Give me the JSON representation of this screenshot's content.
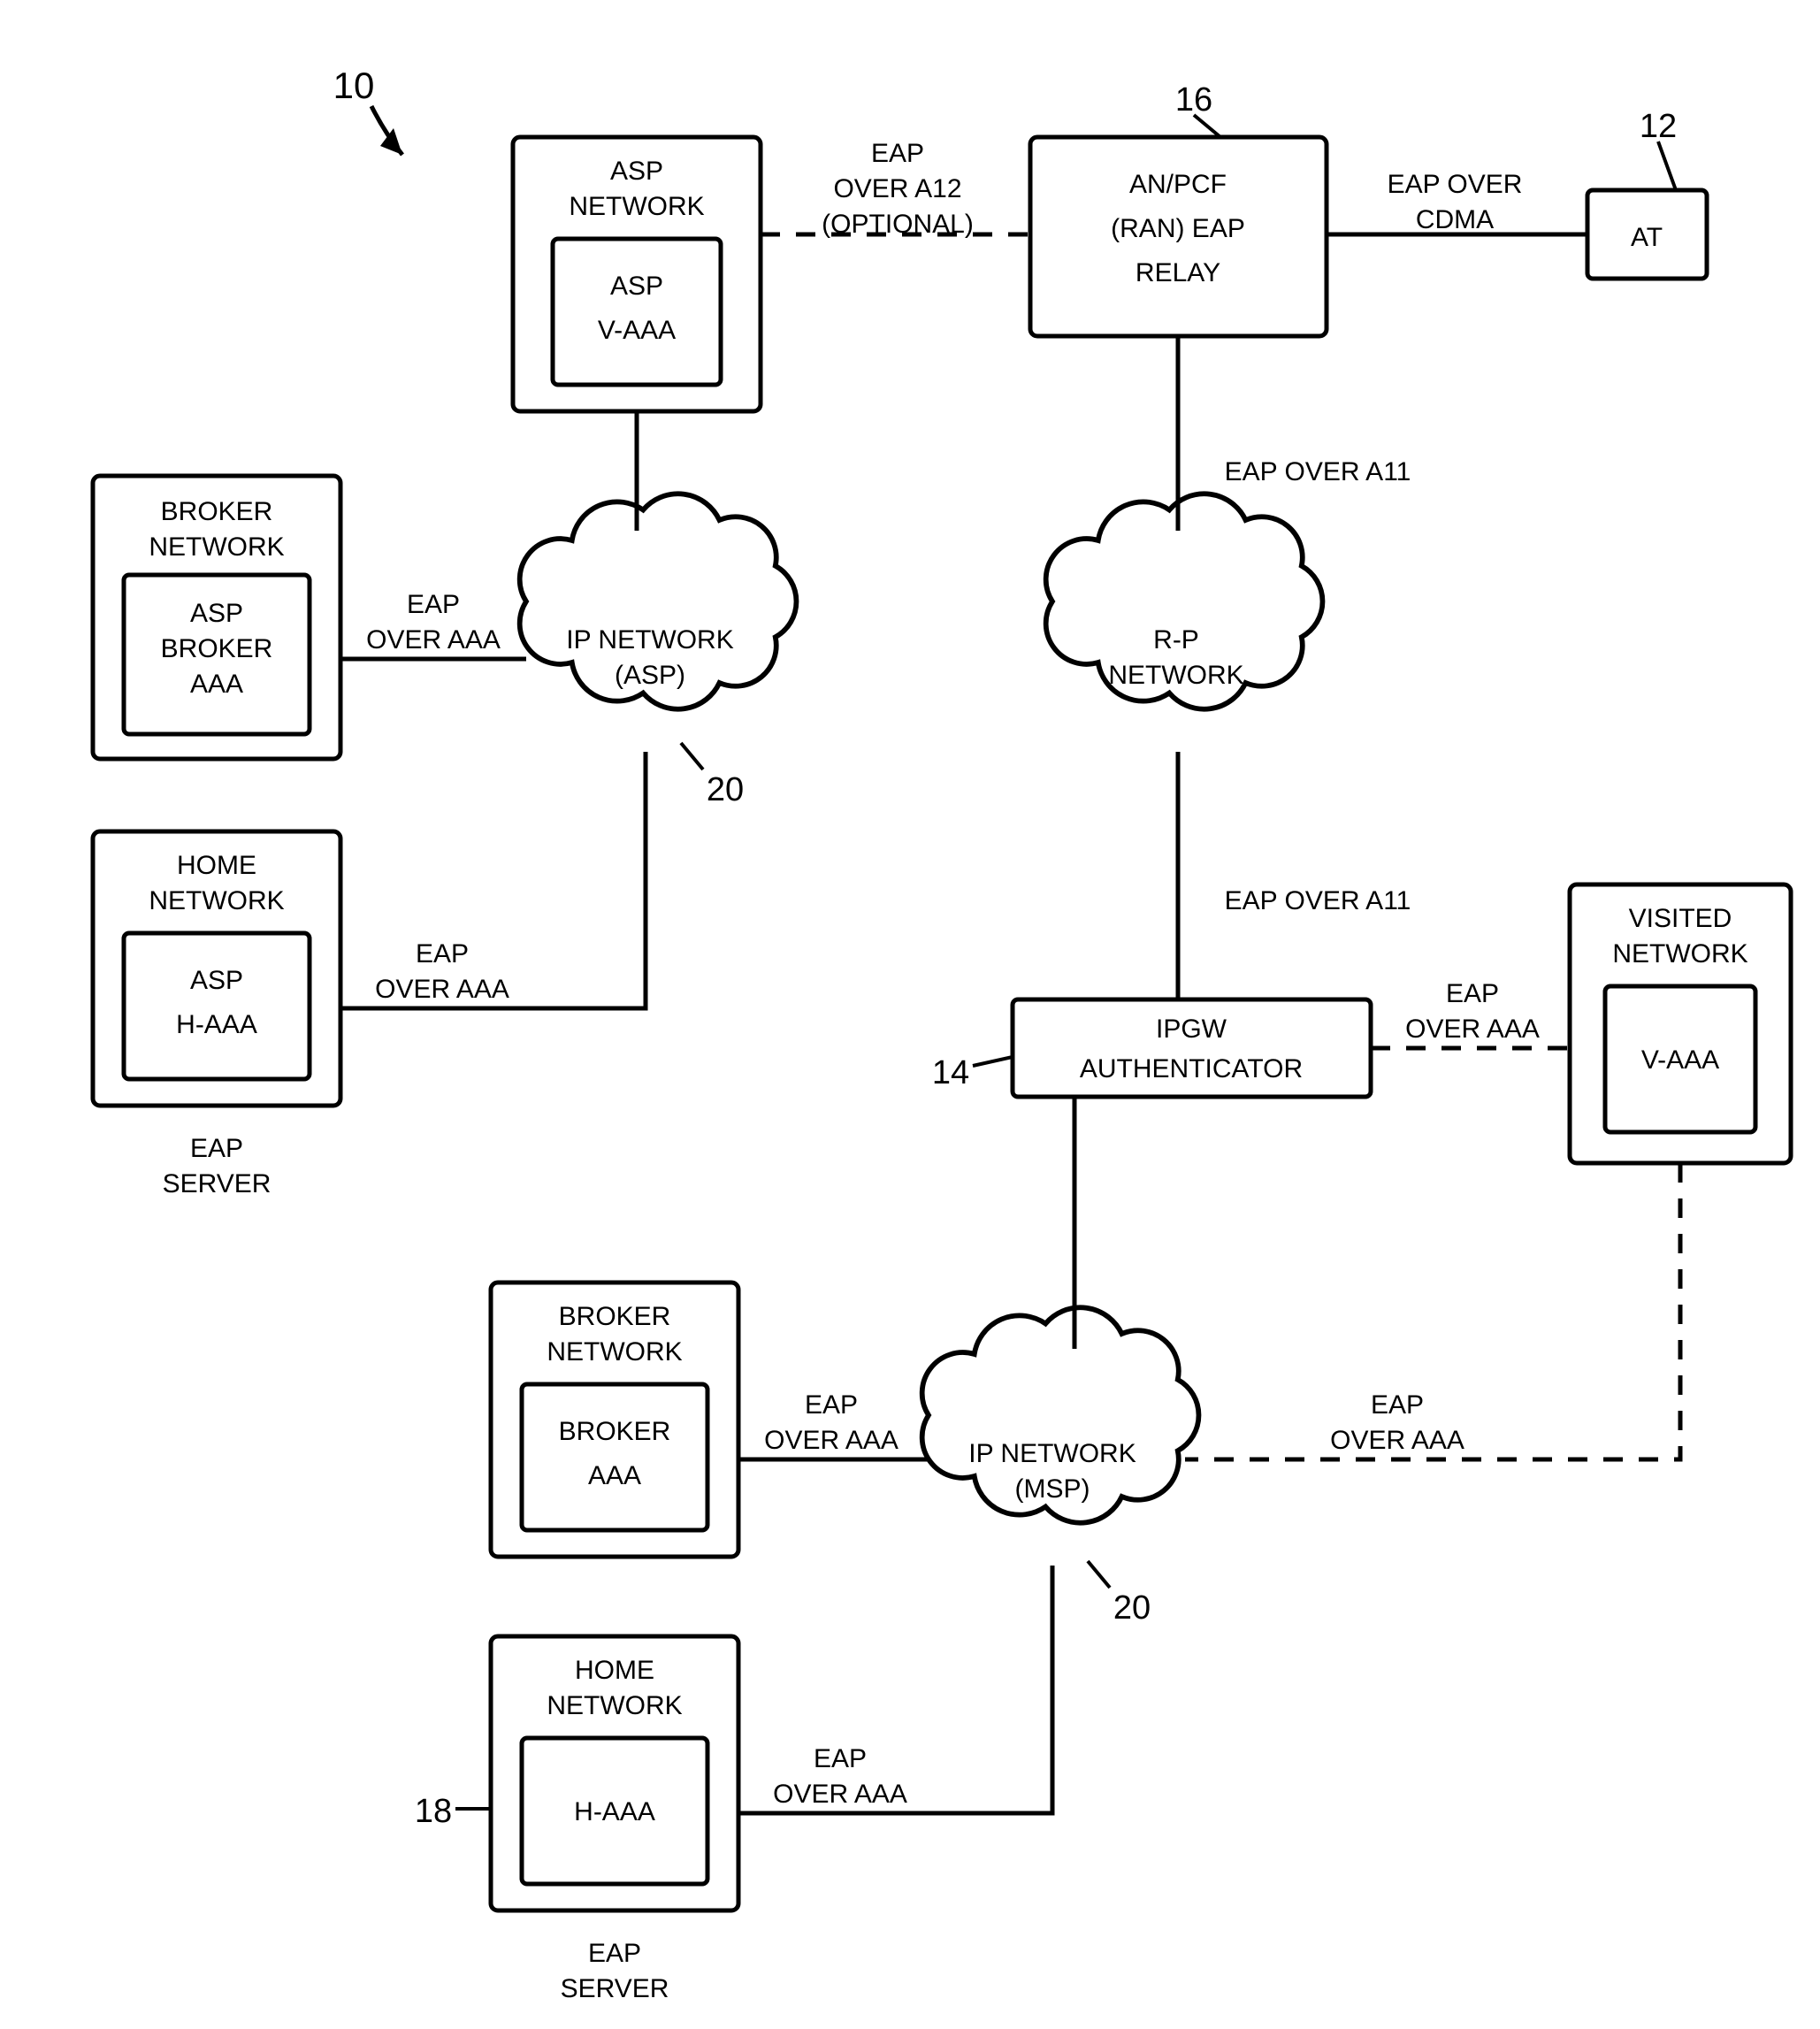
{
  "figure_number": "10",
  "callouts": {
    "anpcf": "16",
    "at": "12",
    "cloud_asp": "20",
    "cloud_msp": "20",
    "ipgw": "14",
    "home_haaa": "18"
  },
  "nodes": {
    "asp_network": {
      "title": "ASP\nNETWORK",
      "inner": "ASP\nV-AAA"
    },
    "anpcf": "AN/PCF\n(RAN) EAP\nRELAY",
    "at": "AT",
    "broker_top": {
      "title": "BROKER\nNETWORK",
      "inner": "ASP\nBROKER\nAAA"
    },
    "home_top": {
      "title": "HOME\nNETWORK",
      "inner": "ASP\nH-AAA",
      "sub": "EAP\nSERVER"
    },
    "cloud_asp": "IP NETWORK\n(ASP)",
    "cloud_rp": "R-P\nNETWORK",
    "ipgw": "IPGW\nAUTHENTICATOR",
    "visited": {
      "title": "VISITED\nNETWORK",
      "inner": "V-AAA"
    },
    "broker_bot": {
      "title": "BROKER\nNETWORK",
      "inner": "BROKER\nAAA"
    },
    "home_bot": {
      "title": "HOME\nNETWORK",
      "inner": "H-AAA",
      "sub": "EAP\nSERVER"
    },
    "cloud_msp": "IP NETWORK\n(MSP)"
  },
  "edge_labels": {
    "eap_a12": "EAP\nOVER A12\n(OPTIONAL)",
    "eap_cdma": "EAP OVER\nCDMA",
    "eap_a11_top": "EAP OVER A11",
    "eap_a11_bot": "EAP OVER A11",
    "eap_aaa": "EAP\nOVER AAA"
  },
  "style": {
    "stroke": "#000000",
    "stroke_width": 5,
    "dash": "22 18",
    "font_size": 30,
    "background": "#ffffff"
  }
}
